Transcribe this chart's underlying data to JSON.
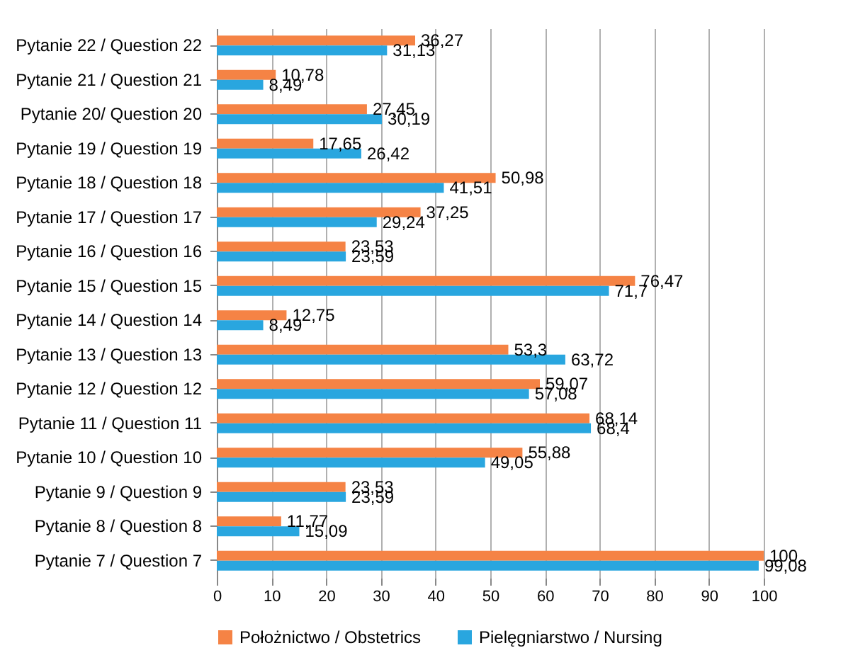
{
  "chart_data": {
    "type": "bar",
    "orientation": "horizontal",
    "categories": [
      "Pytanie 22 / Question 22",
      "Pytanie 21 / Question 21",
      "Pytanie 20/ Question 20",
      "Pytanie 19 / Question 19",
      "Pytanie 18 / Question 18",
      "Pytanie 17 / Question 17",
      "Pytanie 16 / Question 16",
      "Pytanie 15 / Question 15",
      "Pytanie 14 / Question 14",
      "Pytanie 13 / Question 13",
      "Pytanie 12 / Question 12",
      "Pytanie 11 / Question 11",
      "Pytanie 10 / Question 10",
      "Pytanie 9 / Question 9",
      "Pytanie 8 / Question 8",
      "Pytanie 7 / Question 7"
    ],
    "series": [
      {
        "name": "Położnictwo / Obstetrics",
        "color": "#f58345",
        "values": [
          36.27,
          10.78,
          27.45,
          17.65,
          50.98,
          37.25,
          23.53,
          76.47,
          12.75,
          53.3,
          59.07,
          68.14,
          55.88,
          23.53,
          11.77,
          100
        ],
        "value_labels": [
          "36,27",
          "10,78",
          "27,45",
          "17,65",
          "50,98",
          "37,25",
          "23,53",
          "76,47",
          "12,75",
          "53,3",
          "59,07",
          "68,14",
          "55,88",
          "23,53",
          "11,77",
          "100"
        ]
      },
      {
        "name": "Pielęgniarstwo / Nursing",
        "color": "#29a6df",
        "values": [
          31.13,
          8.49,
          30.19,
          26.42,
          41.51,
          29.24,
          23.59,
          71.7,
          8.49,
          63.72,
          57.08,
          68.4,
          49.05,
          23.59,
          15.09,
          99.08
        ],
        "value_labels": [
          "31,13",
          "8,49",
          "30,19",
          "26,42",
          "41,51",
          "29,24",
          "23,59",
          "71,7",
          "8,49",
          "63,72",
          "57,08",
          "68,4",
          "49,05",
          "23,59",
          "15,09",
          "99,08"
        ]
      }
    ],
    "xlim": [
      0,
      100
    ],
    "xticks": [
      0,
      10,
      20,
      30,
      40,
      50,
      60,
      70,
      80,
      90,
      100
    ],
    "grid": "x",
    "legend": "bottom"
  }
}
